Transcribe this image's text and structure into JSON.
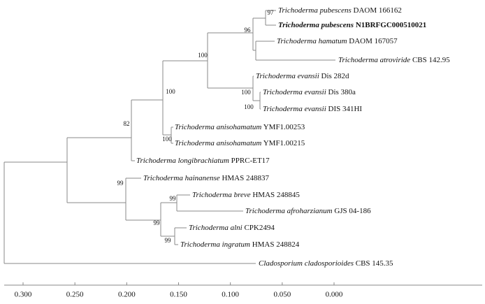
{
  "leaves": [
    {
      "taxon": "Trichoderma pubescens",
      "strain": "DAOM 166162"
    },
    {
      "taxon": "Trichoderma pubescens",
      "strain": "N1BRFGC000510021"
    },
    {
      "taxon": "Trichoderma hamatum",
      "strain": "DAOM 167057"
    },
    {
      "taxon": "Trichoderma atroviride",
      "strain": "CBS 142.95"
    },
    {
      "taxon": "Trichoderma evansii",
      "strain": "Dis 282d"
    },
    {
      "taxon": "Trichoderma evansii",
      "strain": "Dis 380a"
    },
    {
      "taxon": "Trichoderma evansii",
      "strain": "DIS 341HI"
    },
    {
      "taxon": "Trichoderma anisohamatum",
      "strain": "YMF1.00253"
    },
    {
      "taxon": "Trichoderma anisohamatum",
      "strain": "YMF1.00215"
    },
    {
      "taxon": "Trichoderma longibrachiatum",
      "strain": "PPRC-ET17"
    },
    {
      "taxon": "Trichoderma hainanense",
      "strain": "HMAS 248837"
    },
    {
      "taxon": "Trichoderma breve",
      "strain": "HMAS 248845"
    },
    {
      "taxon": "Trichoderma afroharzianum",
      "strain": "GJS 04-186"
    },
    {
      "taxon": "Trichoderma alni",
      "strain": "CPK2494"
    },
    {
      "taxon": "Trichoderma ingratum",
      "strain": "HMAS 248824"
    },
    {
      "taxon": "Cladosporium cladosporioides",
      "strain": "CBS 145.35"
    }
  ],
  "bootstrap": [
    97,
    96,
    100,
    100,
    100,
    82,
    100,
    100,
    99,
    99,
    99
  ],
  "scale": {
    "ticks": [
      {
        "value": 0.3,
        "label": "0.300"
      },
      {
        "value": 0.25,
        "label": "0.250"
      },
      {
        "value": 0.2,
        "label": "0.200"
      },
      {
        "value": 0.15,
        "label": "0.150"
      },
      {
        "value": 0.1,
        "label": "0.100"
      },
      {
        "value": 0.05,
        "label": "0.050"
      },
      {
        "value": 0,
        "label": "0.000"
      }
    ]
  }
}
